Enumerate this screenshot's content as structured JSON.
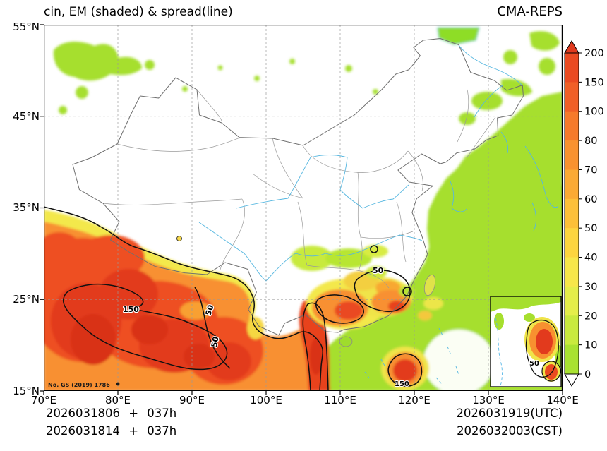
{
  "header": {
    "title": "cin, EM (shaded) & spread(line)",
    "product": "CMA-REPS"
  },
  "axes": {
    "x_ticks": [
      "70°E",
      "80°E",
      "90°E",
      "100°E",
      "110°E",
      "120°E",
      "130°E",
      "140°E"
    ],
    "y_ticks": [
      "55°N",
      "45°N",
      "35°N",
      "25°N",
      "15°N"
    ]
  },
  "colorbar": {
    "tick_labels": [
      "200",
      "150",
      "100",
      "80",
      "70",
      "60",
      "50",
      "40",
      "30",
      "20",
      "10",
      "0"
    ],
    "segment_colors_top_to_bottom": [
      "#ea4a22",
      "#f05f27",
      "#f67a2b",
      "#f9922f",
      "#fbaa34",
      "#fdc039",
      "#fdd53f",
      "#f7e74a",
      "#e4ee4a",
      "#c9ea3e",
      "#a9e231"
    ],
    "over_color": "#e03a1e",
    "under_color": "#ffffff"
  },
  "map": {
    "contour_labels": [
      {
        "text": "50"
      },
      {
        "text": "150"
      },
      {
        "text": "50"
      },
      {
        "text": "50"
      },
      {
        "text": "150"
      },
      {
        "text": "50"
      }
    ],
    "license": "No. GS (2019) 1786"
  },
  "footer": {
    "left_line1": "2026031806 + 037h",
    "left_line2": "2026031814 + 037h",
    "right_line1": "2026031919(UTC)",
    "right_line2": "2026032003(CST)"
  },
  "chart_data": {
    "type": "heatmap",
    "title": "cin, EM (shaded) & spread(line)",
    "model": "CMA-REPS",
    "field": "CIN ensemble mean (shaded) with ensemble spread contours (black lines)",
    "x_axis": {
      "ticks": [
        "70°E",
        "80°E",
        "90°E",
        "100°E",
        "110°E",
        "120°E",
        "130°E",
        "140°E"
      ],
      "range_deg_east": [
        70,
        140
      ]
    },
    "y_axis": {
      "ticks": [
        "55°N",
        "45°N",
        "35°N",
        "25°N",
        "15°N"
      ],
      "range_deg_north": [
        15,
        55
      ]
    },
    "grid": "dashed, every 10 degrees",
    "legend_position": "right colorbar with over/under arrows",
    "shading_levels": [
      0,
      10,
      20,
      30,
      40,
      50,
      60,
      70,
      80,
      100,
      150,
      200
    ],
    "labeled_contour_levels": [
      50,
      150
    ],
    "regions_approx": [
      {
        "area": "south of Tibetan Plateau / North India, 70-100E 15-30N",
        "value_range": "100-200+"
      },
      {
        "area": "Indochina / Vietnam strip, 100-108E 15-25N",
        "value_range": "60-200"
      },
      {
        "area": "Guangxi-Guangdong-Fujian, 105-118E 22-28N",
        "value_range": "30-150"
      },
      {
        "area": "Luzon vicinity, 118-122E 15-18N",
        "value_range": "100-200"
      },
      {
        "area": "East China Sea / Korea / Japan and scattered northern patches",
        "value_range": "0-10"
      },
      {
        "area": "central and northern China interior",
        "value_range": "below lowest level (white)"
      }
    ],
    "valid_time": "2026031919(UTC) / 2026032003(CST)",
    "init_plus_lead": [
      "2026031806 + 037h",
      "2026031814 + 037h"
    ]
  }
}
